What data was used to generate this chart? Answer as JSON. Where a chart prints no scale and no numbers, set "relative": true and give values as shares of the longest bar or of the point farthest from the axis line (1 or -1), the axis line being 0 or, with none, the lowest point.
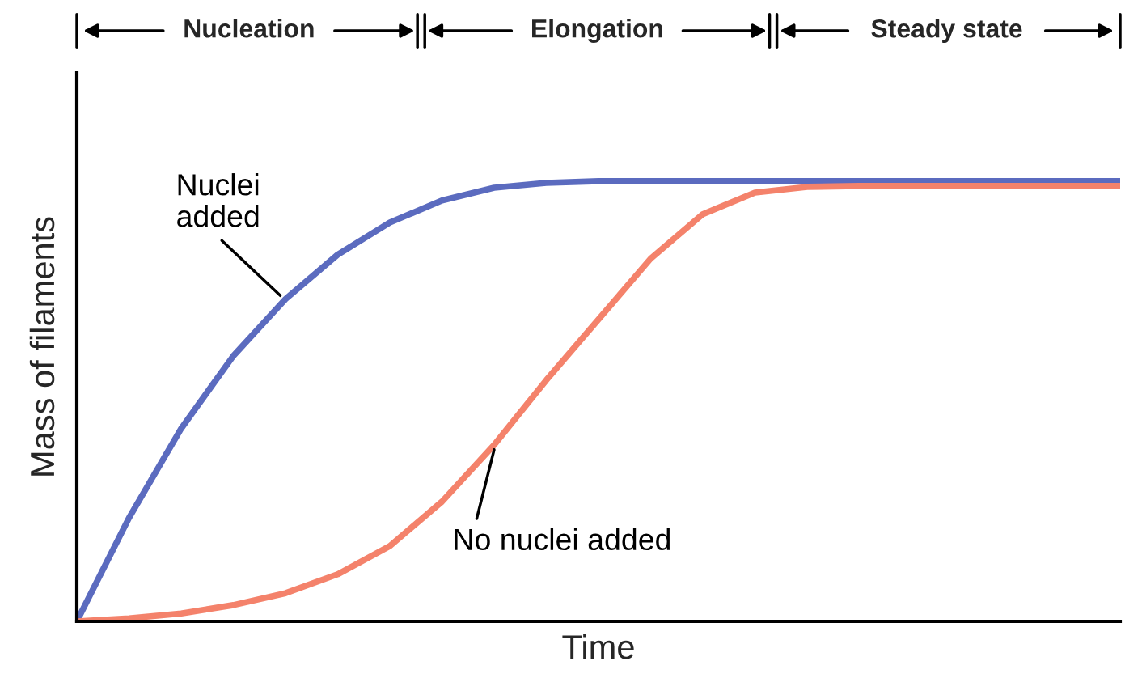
{
  "chart_data": {
    "type": "line",
    "relative": true,
    "xlabel": "Time",
    "ylabel": "Mass of filaments",
    "categories": [
      null,
      null,
      null,
      null,
      null,
      null,
      null,
      null,
      null,
      null,
      null,
      null,
      null,
      null,
      null,
      null,
      null,
      null,
      null,
      null,
      null
    ],
    "series": [
      {
        "name": "Nuclei\nadded",
        "color": "#5b6bbf",
        "values": [
          0,
          0.235,
          0.438,
          0.603,
          0.732,
          0.833,
          0.906,
          0.956,
          0.985,
          0.996,
          1,
          1,
          1,
          1,
          1,
          1,
          1,
          1,
          1,
          1,
          1
        ]
      },
      {
        "name": "No nuclei added",
        "color": "#f4826b",
        "values": [
          0,
          0.007,
          0.018,
          0.037,
          0.064,
          0.107,
          0.171,
          0.272,
          0.401,
          0.548,
          0.686,
          0.824,
          0.925,
          0.974,
          0.987,
          0.989,
          0.989,
          0.989,
          0.989,
          0.989,
          0.989
        ]
      }
    ],
    "annotations": [
      "Nucleation",
      "Elongation",
      "Steady state"
    ],
    "grid": false,
    "legend": false,
    "marker": "none",
    "line_style": "solid"
  }
}
